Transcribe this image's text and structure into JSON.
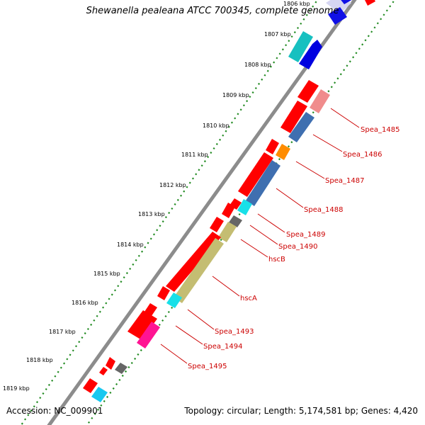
{
  "header": {
    "title": "Shewanella pealeana ATCC 700345, complete genome"
  },
  "footer": {
    "accession": "Accession: NC_009901",
    "stats": "Topology: circular; Length: 5,174,581 bp; Genes: 4,420"
  },
  "ticks": [
    {
      "label": "1806 kbp"
    },
    {
      "label": "1807 kbp"
    },
    {
      "label": "1808 kbp"
    },
    {
      "label": "1809 kbp"
    },
    {
      "label": "1810 kbp"
    },
    {
      "label": "1811 kbp"
    },
    {
      "label": "1812 kbp"
    },
    {
      "label": "1813 kbp"
    },
    {
      "label": "1814 kbp"
    },
    {
      "label": "1815 kbp"
    },
    {
      "label": "1816 kbp"
    },
    {
      "label": "1817 kbp"
    },
    {
      "label": "1818 kbp"
    },
    {
      "label": "1819 kbp"
    }
  ],
  "gene_labels": [
    {
      "label": "Spea_1485"
    },
    {
      "label": "Spea_1486"
    },
    {
      "label": "Spea_1487"
    },
    {
      "label": "Spea_1488"
    },
    {
      "label": "Spea_1489"
    },
    {
      "label": "Spea_1490"
    },
    {
      "label": "hscB"
    },
    {
      "label": "hscA"
    },
    {
      "label": "Spea_1493"
    },
    {
      "label": "Spea_1494"
    },
    {
      "label": "Spea_1495"
    }
  ],
  "colors": {
    "backbone": "#8c8c8c",
    "dots": "#228b22",
    "cds": "#ff0000",
    "label": "#cc0000"
  }
}
